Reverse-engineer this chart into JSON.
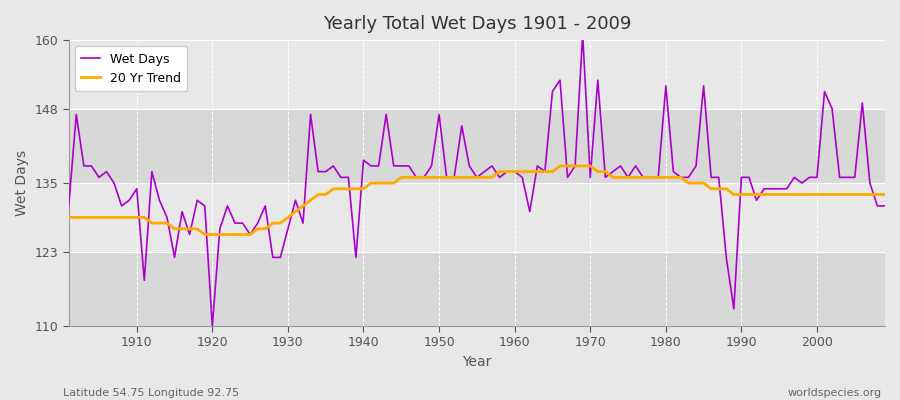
{
  "title": "Yearly Total Wet Days 1901 - 2009",
  "xlabel": "Year",
  "ylabel": "Wet Days",
  "footnote_left": "Latitude 54.75 Longitude 92.75",
  "footnote_right": "worldspecies.org",
  "legend_labels": [
    "Wet Days",
    "20 Yr Trend"
  ],
  "wet_days_color": "#aa00cc",
  "trend_color": "#ffaa00",
  "ylim": [
    110,
    160
  ],
  "yticks": [
    110,
    123,
    135,
    148,
    160
  ],
  "years": [
    1901,
    1902,
    1903,
    1904,
    1905,
    1906,
    1907,
    1908,
    1909,
    1910,
    1911,
    1912,
    1913,
    1914,
    1915,
    1916,
    1917,
    1918,
    1919,
    1920,
    1921,
    1922,
    1923,
    1924,
    1925,
    1926,
    1927,
    1928,
    1929,
    1930,
    1931,
    1932,
    1933,
    1934,
    1935,
    1936,
    1937,
    1938,
    1939,
    1940,
    1941,
    1942,
    1943,
    1944,
    1945,
    1946,
    1947,
    1948,
    1949,
    1950,
    1951,
    1952,
    1953,
    1954,
    1955,
    1956,
    1957,
    1958,
    1959,
    1960,
    1961,
    1962,
    1963,
    1964,
    1965,
    1966,
    1967,
    1968,
    1969,
    1970,
    1971,
    1972,
    1973,
    1974,
    1975,
    1976,
    1977,
    1978,
    1979,
    1980,
    1981,
    1982,
    1983,
    1984,
    1985,
    1986,
    1987,
    1988,
    1989,
    1990,
    1991,
    1992,
    1993,
    1994,
    1995,
    1996,
    1997,
    1998,
    1999,
    2000,
    2001,
    2002,
    2003,
    2004,
    2005,
    2006,
    2007,
    2008,
    2009
  ],
  "wet_days": [
    131,
    147,
    138,
    138,
    136,
    137,
    135,
    131,
    132,
    134,
    118,
    137,
    132,
    129,
    122,
    130,
    126,
    132,
    131,
    110,
    127,
    131,
    128,
    128,
    126,
    128,
    131,
    122,
    122,
    127,
    132,
    128,
    147,
    137,
    137,
    138,
    136,
    136,
    122,
    139,
    138,
    138,
    147,
    138,
    138,
    138,
    136,
    136,
    138,
    147,
    136,
    136,
    145,
    138,
    136,
    137,
    138,
    136,
    137,
    137,
    136,
    130,
    138,
    137,
    151,
    153,
    136,
    138,
    161,
    136,
    153,
    136,
    137,
    138,
    136,
    138,
    136,
    136,
    136,
    152,
    137,
    136,
    136,
    138,
    152,
    136,
    136,
    122,
    113,
    136,
    136,
    132,
    134,
    134,
    134,
    134,
    136,
    135,
    136,
    136,
    151,
    148,
    136,
    136,
    136,
    149,
    135,
    131,
    131
  ],
  "trend": [
    129,
    129,
    129,
    129,
    129,
    129,
    129,
    129,
    129,
    129,
    129,
    128,
    128,
    128,
    127,
    127,
    127,
    127,
    126,
    126,
    126,
    126,
    126,
    126,
    126,
    127,
    127,
    128,
    128,
    129,
    130,
    131,
    132,
    133,
    133,
    134,
    134,
    134,
    134,
    134,
    135,
    135,
    135,
    135,
    136,
    136,
    136,
    136,
    136,
    136,
    136,
    136,
    136,
    136,
    136,
    136,
    136,
    137,
    137,
    137,
    137,
    137,
    137,
    137,
    137,
    138,
    138,
    138,
    138,
    138,
    137,
    137,
    136,
    136,
    136,
    136,
    136,
    136,
    136,
    136,
    136,
    136,
    135,
    135,
    135,
    134,
    134,
    134,
    133,
    133,
    133,
    133,
    133,
    133,
    133,
    133,
    133,
    133,
    133,
    133,
    133,
    133,
    133,
    133,
    133,
    133,
    133,
    133,
    133
  ]
}
